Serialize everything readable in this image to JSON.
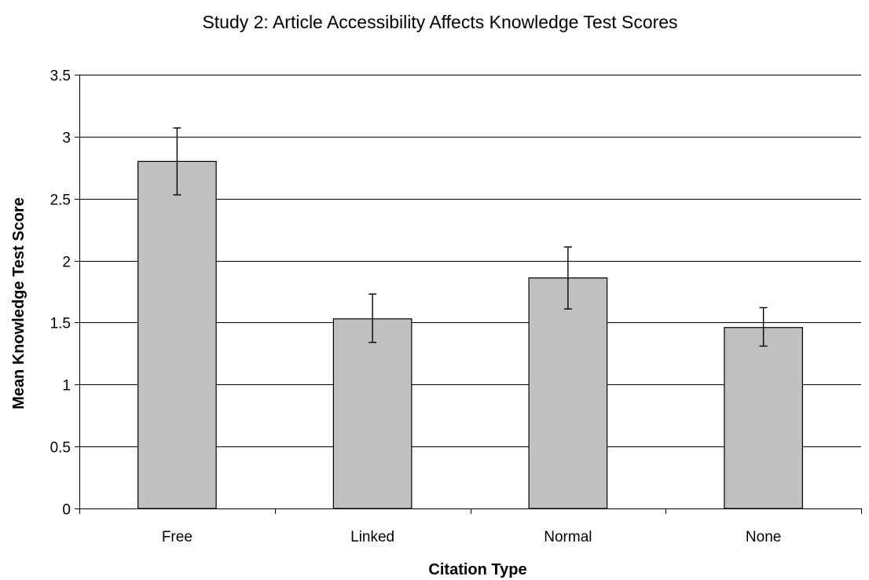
{
  "chart_data": {
    "type": "bar",
    "title": "Study 2: Article Accessibility Affects Knowledge Test Scores",
    "xlabel": "Citation Type",
    "ylabel": "Mean Knowledge Test Score",
    "categories": [
      "Free",
      "Linked",
      "Normal",
      "None"
    ],
    "values": [
      2.8,
      1.53,
      1.86,
      1.46
    ],
    "error_low": [
      2.53,
      1.34,
      1.61,
      1.31
    ],
    "error_high": [
      3.07,
      1.73,
      2.11,
      1.62
    ],
    "ylim": [
      0,
      3.5
    ],
    "yticks": [
      "0",
      "0.5",
      "1",
      "1.5",
      "2",
      "2.5",
      "3",
      "3.5"
    ],
    "grid": true,
    "legend": "none",
    "bar_color": "#c0c0c0"
  }
}
